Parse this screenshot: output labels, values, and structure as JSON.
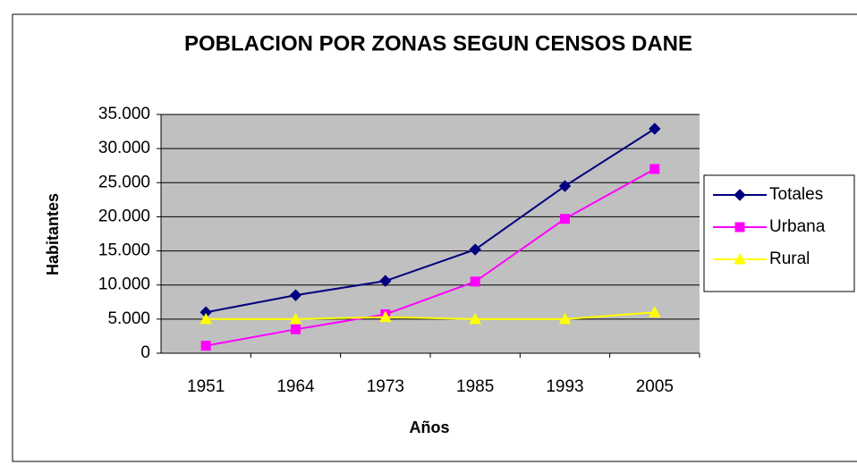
{
  "chart_data": {
    "type": "line",
    "title": "POBLACION POR ZONAS SEGUN CENSOS DANE",
    "xlabel": "Años",
    "ylabel": "Habitantes",
    "categories": [
      "1951",
      "1964",
      "1973",
      "1985",
      "1993",
      "2005"
    ],
    "series": [
      {
        "name": "Totales",
        "color": "#000080",
        "marker": "diamond",
        "values": [
          6000,
          8500,
          10600,
          15200,
          24500,
          32900
        ]
      },
      {
        "name": "Urbana",
        "color": "#ff00ff",
        "marker": "square",
        "values": [
          1100,
          3500,
          5700,
          10500,
          19700,
          27000
        ]
      },
      {
        "name": "Rural",
        "color": "#ffff00",
        "marker": "triangle",
        "values": [
          5000,
          5000,
          5300,
          5000,
          5000,
          6000
        ]
      }
    ],
    "ylim": [
      0,
      35000
    ],
    "yticks": [
      0,
      {
        "value": 5000,
        "label": "5.000"
      },
      {
        "value": 10000,
        "label": "10.000"
      },
      {
        "value": 15000,
        "label": "15.000"
      },
      {
        "value": 20000,
        "label": "20.000"
      },
      {
        "value": 25000,
        "label": "25.000"
      },
      {
        "value": 30000,
        "label": "30.000"
      },
      {
        "value": 35000,
        "label": "35.000"
      }
    ],
    "grid": true,
    "legend": "right"
  }
}
